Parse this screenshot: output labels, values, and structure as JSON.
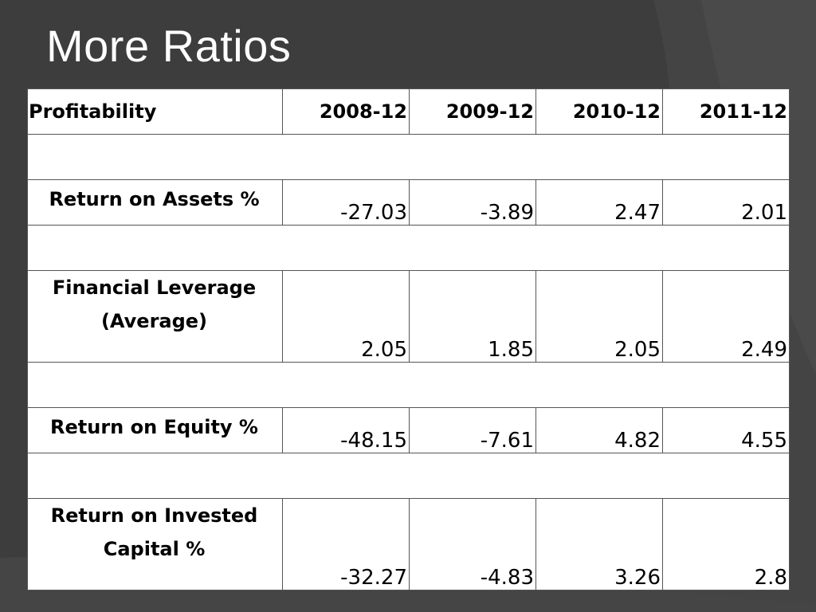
{
  "slide": {
    "title": "More Ratios"
  },
  "colors": {
    "background": "#3d3d3d",
    "title_text": "#ffffff",
    "table_background": "#ffffff",
    "table_border": "#555555"
  },
  "table": {
    "header": {
      "label": "Profitability",
      "years": [
        "2008-12",
        "2009-12",
        "2010-12",
        "2011-12"
      ]
    },
    "rows": [
      {
        "label": "Return on Assets %",
        "values": [
          "-27.03",
          "-3.89",
          "2.47",
          "2.01"
        ]
      },
      {
        "label": "Financial Leverage (Average)",
        "values": [
          "2.05",
          "1.85",
          "2.05",
          "2.49"
        ]
      },
      {
        "label": "Return on Equity %",
        "values": [
          "-48.15",
          "-7.61",
          "4.82",
          "4.55"
        ]
      },
      {
        "label": "Return on Invested Capital %",
        "values": [
          "-32.27",
          "-4.83",
          "3.26",
          "2.8"
        ]
      }
    ]
  }
}
